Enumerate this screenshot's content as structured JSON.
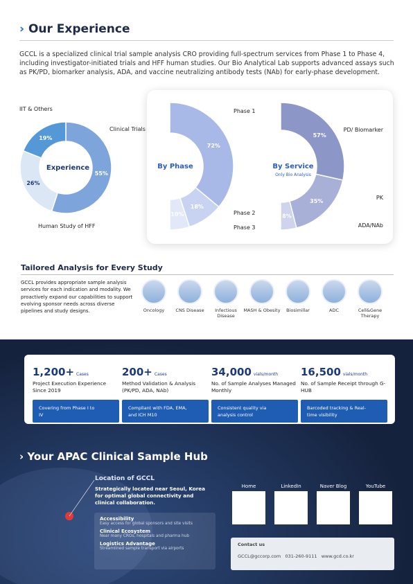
{
  "header": {
    "title": "Our Experience",
    "intro": "GCCL is a specialized clinical trial sample analysis CRO providing full-spectrum services from Phase 1 to Phase 4, including investigator-initiated trials and HFF human studies. Our Bio Analytical Lab supports advanced assays such as PK/PD, biomarker analysis, ADA, and vaccine neutralizing antibody tests (NAb) for early-phase development."
  },
  "chart_data": [
    {
      "type": "pie",
      "title": "Experience",
      "categories": [
        "Clinical Trials",
        "Human Study of HFF",
        "IIT & Others"
      ],
      "values": [
        55,
        26,
        19
      ],
      "value_labels": [
        "55%",
        "26%",
        "19%"
      ],
      "colors": [
        "#7ea4dc",
        "#dce7f5",
        "#5598d8"
      ]
    },
    {
      "type": "pie",
      "title": "By Phase",
      "categories": [
        "Phase 1",
        "Phase 2",
        "Phase 3"
      ],
      "values": [
        72,
        18,
        10
      ],
      "value_labels": [
        "72%",
        "18%",
        "10%"
      ],
      "colors": [
        "#a8b9e7",
        "#c8d3f1",
        "#e2e8f8"
      ]
    },
    {
      "type": "pie",
      "title": "By Service",
      "subtitle": "Only Bio Analysis",
      "categories": [
        "PD/ Biomarker",
        "PK",
        "ADA/NAb"
      ],
      "values": [
        57,
        35,
        8
      ],
      "value_labels": [
        "57%",
        "35%",
        "8%"
      ],
      "colors": [
        "#8c97c8",
        "#a9b0d8",
        "#cfd3ec"
      ]
    }
  ],
  "tailored": {
    "title": "Tailored Analysis for Every Study",
    "text": "GCCL provides appropriate sample analysis services for each indication and modality. We proactively expand our capabilities to support evolving sponsor needs across diverse pipelines and study designs.",
    "items": [
      "Oncology",
      "CNS Disease",
      "Infectious Disease",
      "MASH & Obesity",
      "Biosimillar",
      "ADC",
      "Cell&Gene Therapy"
    ]
  },
  "stats": [
    {
      "number": "1,200+",
      "unit": "Cases",
      "title": "Project Execution Experience Since 2019",
      "box": "Covering from Phase I to IV"
    },
    {
      "number": "200+",
      "unit": "Cases",
      "title": "Method Validation & Analysis (PK/PD, ADA, NAb)",
      "box": "Compliant with FDA, EMA, and ICH M10"
    },
    {
      "number": "34,000",
      "unit": "vials/month",
      "title": "No. of Sample Analyses Managed Monthly",
      "box": "Consistent quality via analysis control"
    },
    {
      "number": "16,500",
      "unit": "vials/month",
      "title": "No. of Sample Receipt through G-HUB",
      "box": "Barcoded tracking & Real-time visibility"
    }
  ],
  "hub": {
    "title": "Your APAC Clinical Sample Hub",
    "location_title": "Location of GCCL",
    "location_text": "Strategically located near Seoul, Korea for optimal global connectivity and clinical collaboration.",
    "features": [
      {
        "title": "Accessibility",
        "text": "Easy access for global sponsors and site visits"
      },
      {
        "title": "Clinical Ecosystem",
        "text": "Near many CROs, hospitals and pharma hub"
      },
      {
        "title": "Logistics Advantage",
        "text": "Streamlined sample transport via airports"
      }
    ],
    "links": [
      "Home",
      "LinkedIn",
      "Naver Blog",
      "YouTube"
    ],
    "contact": {
      "label": "Contact us",
      "email": "GCCL@gccorp.com",
      "phone": "031-260-9111",
      "web": "www.gcd.co.kr"
    }
  }
}
